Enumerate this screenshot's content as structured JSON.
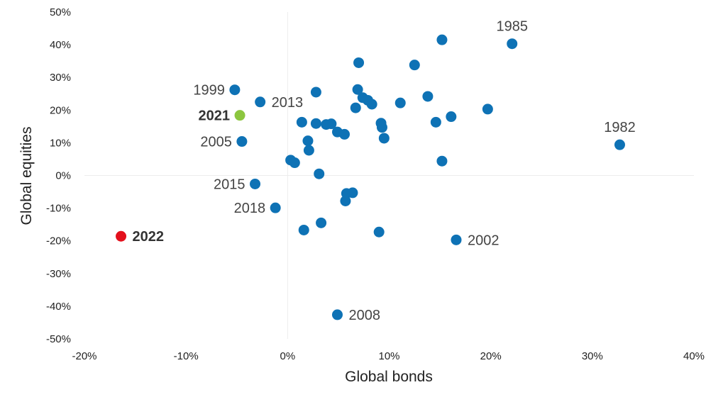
{
  "chart_data": {
    "type": "scatter",
    "title": "",
    "xlabel": "Global bonds",
    "ylabel": "Global equities",
    "xlim": [
      -20,
      40
    ],
    "ylim": [
      -50,
      50
    ],
    "xticks": [
      -20,
      -10,
      0,
      10,
      20,
      30,
      40
    ],
    "yticks": [
      -50,
      -40,
      -30,
      -20,
      -10,
      0,
      10,
      20,
      30,
      40,
      50
    ],
    "tick_suffix": "%",
    "grid": false,
    "zero_lines": true,
    "colors": {
      "default": "#0e72b5",
      "highlight_2021": "#8cc63f",
      "highlight_2022": "#e3101c"
    },
    "points": [
      {
        "x": 15.2,
        "y": 41.5
      },
      {
        "x": 22.1,
        "y": 40.3,
        "label": "1985",
        "label_pos": "above"
      },
      {
        "x": 7.0,
        "y": 34.5
      },
      {
        "x": 12.5,
        "y": 33.8
      },
      {
        "x": -5.2,
        "y": 26.2,
        "label": "1999",
        "label_pos": "left"
      },
      {
        "x": 2.8,
        "y": 25.5
      },
      {
        "x": 6.9,
        "y": 26.3
      },
      {
        "x": 7.4,
        "y": 23.8
      },
      {
        "x": 7.9,
        "y": 23.0
      },
      {
        "x": 8.3,
        "y": 21.8
      },
      {
        "x": 13.8,
        "y": 24.2
      },
      {
        "x": -2.7,
        "y": 22.5,
        "label": "2013",
        "label_pos": "right"
      },
      {
        "x": 11.1,
        "y": 22.2
      },
      {
        "x": 6.7,
        "y": 20.7
      },
      {
        "x": 19.7,
        "y": 20.3
      },
      {
        "x": -4.7,
        "y": 18.4,
        "label": "2021",
        "label_pos": "left",
        "bold": true,
        "highlight": "2021"
      },
      {
        "x": 16.1,
        "y": 18.0
      },
      {
        "x": 1.4,
        "y": 16.3
      },
      {
        "x": 2.8,
        "y": 15.9
      },
      {
        "x": 3.8,
        "y": 15.6
      },
      {
        "x": 4.3,
        "y": 15.8
      },
      {
        "x": 9.2,
        "y": 16.0
      },
      {
        "x": 14.6,
        "y": 16.3
      },
      {
        "x": 9.3,
        "y": 14.7
      },
      {
        "x": 4.9,
        "y": 13.3
      },
      {
        "x": 5.6,
        "y": 12.6
      },
      {
        "x": 9.5,
        "y": 11.4
      },
      {
        "x": -4.5,
        "y": 10.4,
        "label": "2005",
        "label_pos": "left"
      },
      {
        "x": 2.0,
        "y": 10.6
      },
      {
        "x": 32.7,
        "y": 9.4,
        "label": "1982",
        "label_pos": "above"
      },
      {
        "x": 2.1,
        "y": 7.7
      },
      {
        "x": 0.3,
        "y": 4.7
      },
      {
        "x": 0.7,
        "y": 3.9
      },
      {
        "x": 15.2,
        "y": 4.4
      },
      {
        "x": 3.1,
        "y": 0.5
      },
      {
        "x": -3.2,
        "y": -2.6,
        "label": "2015",
        "label_pos": "left"
      },
      {
        "x": 5.8,
        "y": -5.5
      },
      {
        "x": 6.4,
        "y": -5.3
      },
      {
        "x": 5.7,
        "y": -7.8
      },
      {
        "x": -1.2,
        "y": -9.9,
        "label": "2018",
        "label_pos": "left"
      },
      {
        "x": 3.3,
        "y": -14.5
      },
      {
        "x": 1.6,
        "y": -16.7
      },
      {
        "x": 9.0,
        "y": -17.3
      },
      {
        "x": 16.6,
        "y": -19.7,
        "label": "2002",
        "label_pos": "right"
      },
      {
        "x": -16.4,
        "y": -18.6,
        "label": "2022",
        "label_pos": "right",
        "bold": true,
        "highlight": "2022"
      },
      {
        "x": 4.9,
        "y": -42.6,
        "label": "2008",
        "label_pos": "right"
      }
    ]
  }
}
